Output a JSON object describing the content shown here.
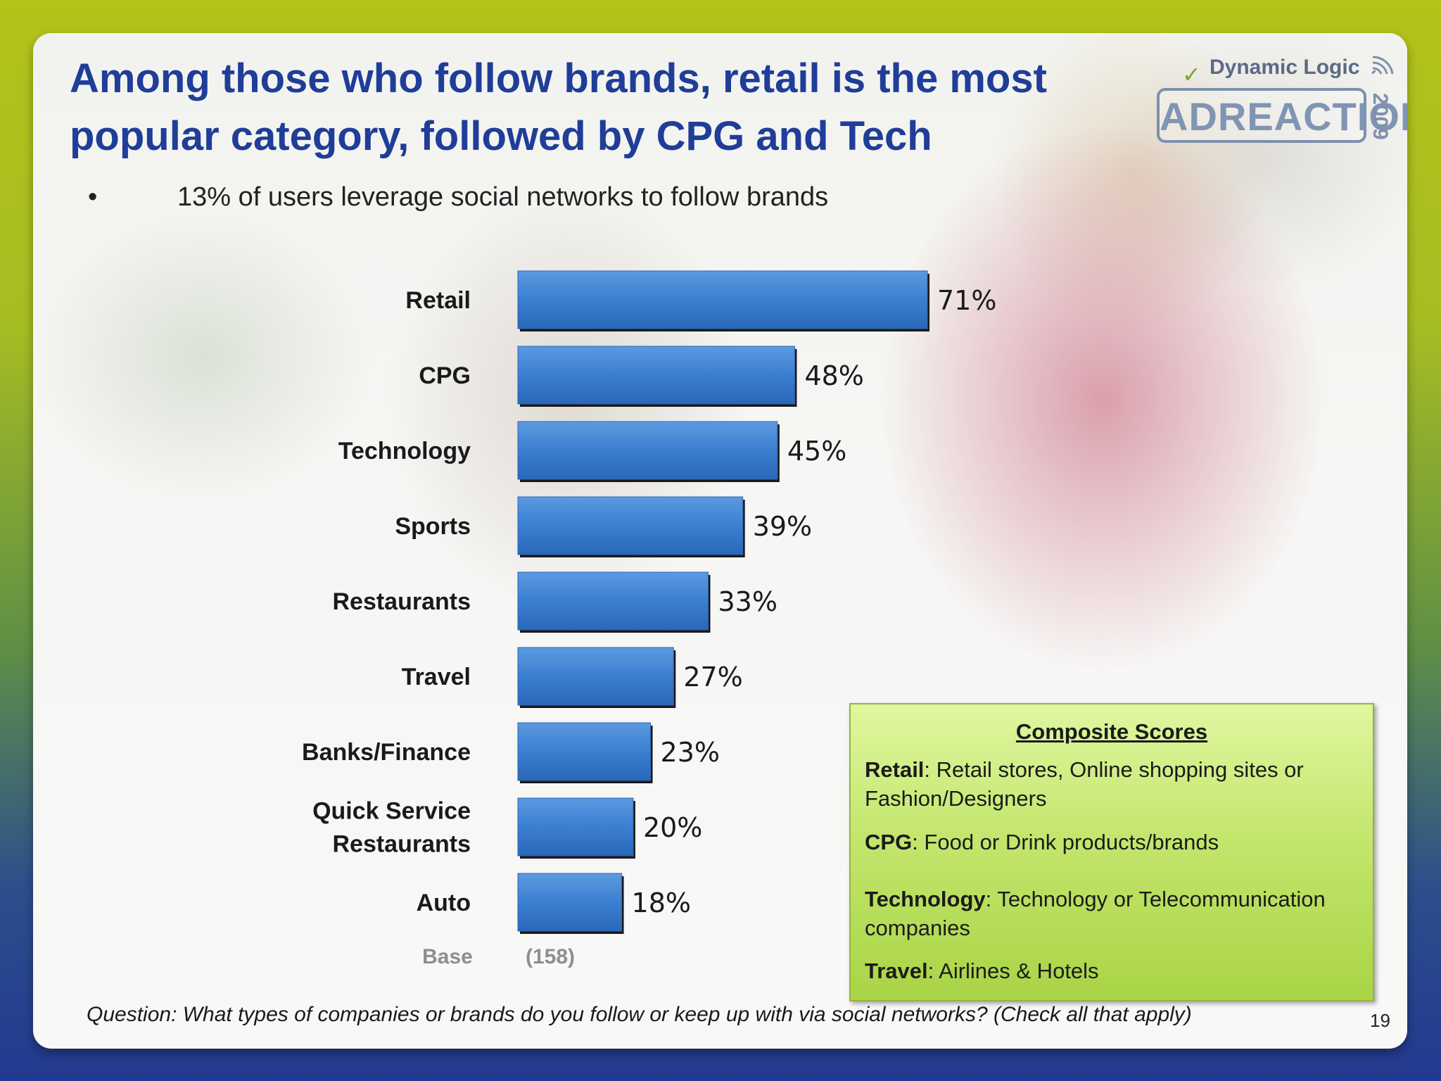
{
  "slide": {
    "title": "Among those who follow brands, retail is the most popular category, followed by CPG and Tech",
    "bullet_text": "13% of users leverage social networks to follow brands",
    "question": "Question: What types of companies or brands do you follow or keep up with  via social networks? (Check all that apply)",
    "page_number": "19",
    "base_label": "Base",
    "base_value": "(158)"
  },
  "logo": {
    "brand": "Dynamic Logic",
    "product": "ADREACTION",
    "year": "2009"
  },
  "composite": {
    "heading": "Composite Scores",
    "items": [
      {
        "term": "Retail",
        "definition": ": Retail stores, Online shopping sites or Fashion/Designers"
      },
      {
        "term": "CPG",
        "definition": ": Food or Drink products/brands"
      },
      {
        "term": "Technology",
        "definition": ": Technology or Telecommunication companies"
      },
      {
        "term": "Travel",
        "definition": ": Airlines & Hotels"
      }
    ]
  },
  "chart_data": {
    "type": "bar",
    "orientation": "horizontal",
    "categories": [
      "Retail",
      "CPG",
      "Technology",
      "Sports",
      "Restaurants",
      "Travel",
      "Banks/Finance",
      "Quick Service Restaurants",
      "Auto"
    ],
    "category_lines": [
      [
        "Retail"
      ],
      [
        "CPG"
      ],
      [
        "Technology"
      ],
      [
        "Sports"
      ],
      [
        "Restaurants"
      ],
      [
        "Travel"
      ],
      [
        "Banks/Finance"
      ],
      [
        "Quick Service",
        "Restaurants"
      ],
      [
        "Auto"
      ]
    ],
    "values": [
      71,
      48,
      45,
      39,
      33,
      27,
      23,
      20,
      18
    ],
    "data_labels": [
      "71%",
      "48%",
      "45%",
      "39%",
      "33%",
      "27%",
      "23%",
      "20%",
      "18%"
    ],
    "unit": "%",
    "xlim": [
      0,
      100
    ],
    "grid": false,
    "bar_color": "#3b7fd1",
    "bar_color_dark": "#2a67b8"
  },
  "colors": {
    "title": "#1f3d99",
    "composite_box": "#c3e66d",
    "frame_top": "#b4c21a",
    "frame_bottom": "#23398f"
  }
}
